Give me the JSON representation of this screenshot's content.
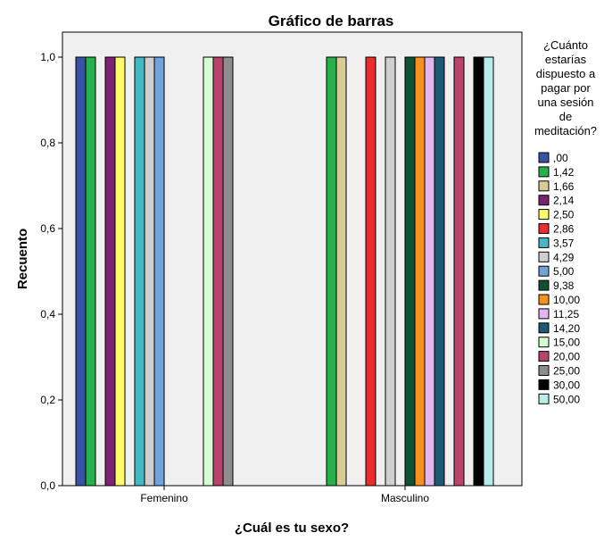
{
  "chart_data": {
    "type": "bar",
    "title": "Gráfico de barras",
    "xlabel": "¿Cuál es tu sexo?",
    "ylabel": "Recuento",
    "categories": [
      "Femenino",
      "Masculino"
    ],
    "yticks": [
      "0,0",
      "0,2",
      "0,4",
      "0,6",
      "0,8",
      "1,0"
    ],
    "ylim": [
      0,
      1.0
    ],
    "grid": false,
    "legend_position": "right",
    "legend_title_lines": [
      "¿Cuánto",
      "estarías",
      "dispuesto a",
      "pagar por",
      "una sesión",
      "de",
      "meditación?"
    ],
    "series": [
      {
        "name": ",00",
        "color": "#3953a4",
        "values": [
          1,
          0
        ]
      },
      {
        "name": "1,42",
        "color": "#26b24b",
        "values": [
          1,
          1
        ]
      },
      {
        "name": "1,66",
        "color": "#d6cd96",
        "values": [
          0,
          1
        ]
      },
      {
        "name": "2,14",
        "color": "#7a2470",
        "values": [
          1,
          0
        ]
      },
      {
        "name": "2,50",
        "color": "#fffb6b",
        "values": [
          1,
          0
        ]
      },
      {
        "name": "2,86",
        "color": "#ec2c2c",
        "values": [
          0,
          1
        ]
      },
      {
        "name": "3,57",
        "color": "#44b9c4",
        "values": [
          1,
          0
        ]
      },
      {
        "name": "4,29",
        "color": "#cfcfcf",
        "values": [
          1,
          1
        ]
      },
      {
        "name": "5,00",
        "color": "#71a3d9",
        "values": [
          1,
          0
        ]
      },
      {
        "name": "9,38",
        "color": "#0d5132",
        "values": [
          0,
          1
        ]
      },
      {
        "name": "10,00",
        "color": "#f6911f",
        "values": [
          0,
          1
        ]
      },
      {
        "name": "11,25",
        "color": "#e4b6ee",
        "values": [
          0,
          1
        ]
      },
      {
        "name": "14,20",
        "color": "#1e5872",
        "values": [
          0,
          1
        ]
      },
      {
        "name": "15,00",
        "color": "#d5fdd2",
        "values": [
          1,
          0
        ]
      },
      {
        "name": "20,00",
        "color": "#b8436c",
        "values": [
          1,
          1
        ]
      },
      {
        "name": "25,00",
        "color": "#8d8d8d",
        "values": [
          1,
          0
        ]
      },
      {
        "name": "30,00",
        "color": "#000000",
        "values": [
          0,
          1
        ]
      },
      {
        "name": "50,00",
        "color": "#b8eded",
        "values": [
          0,
          1
        ]
      }
    ]
  }
}
